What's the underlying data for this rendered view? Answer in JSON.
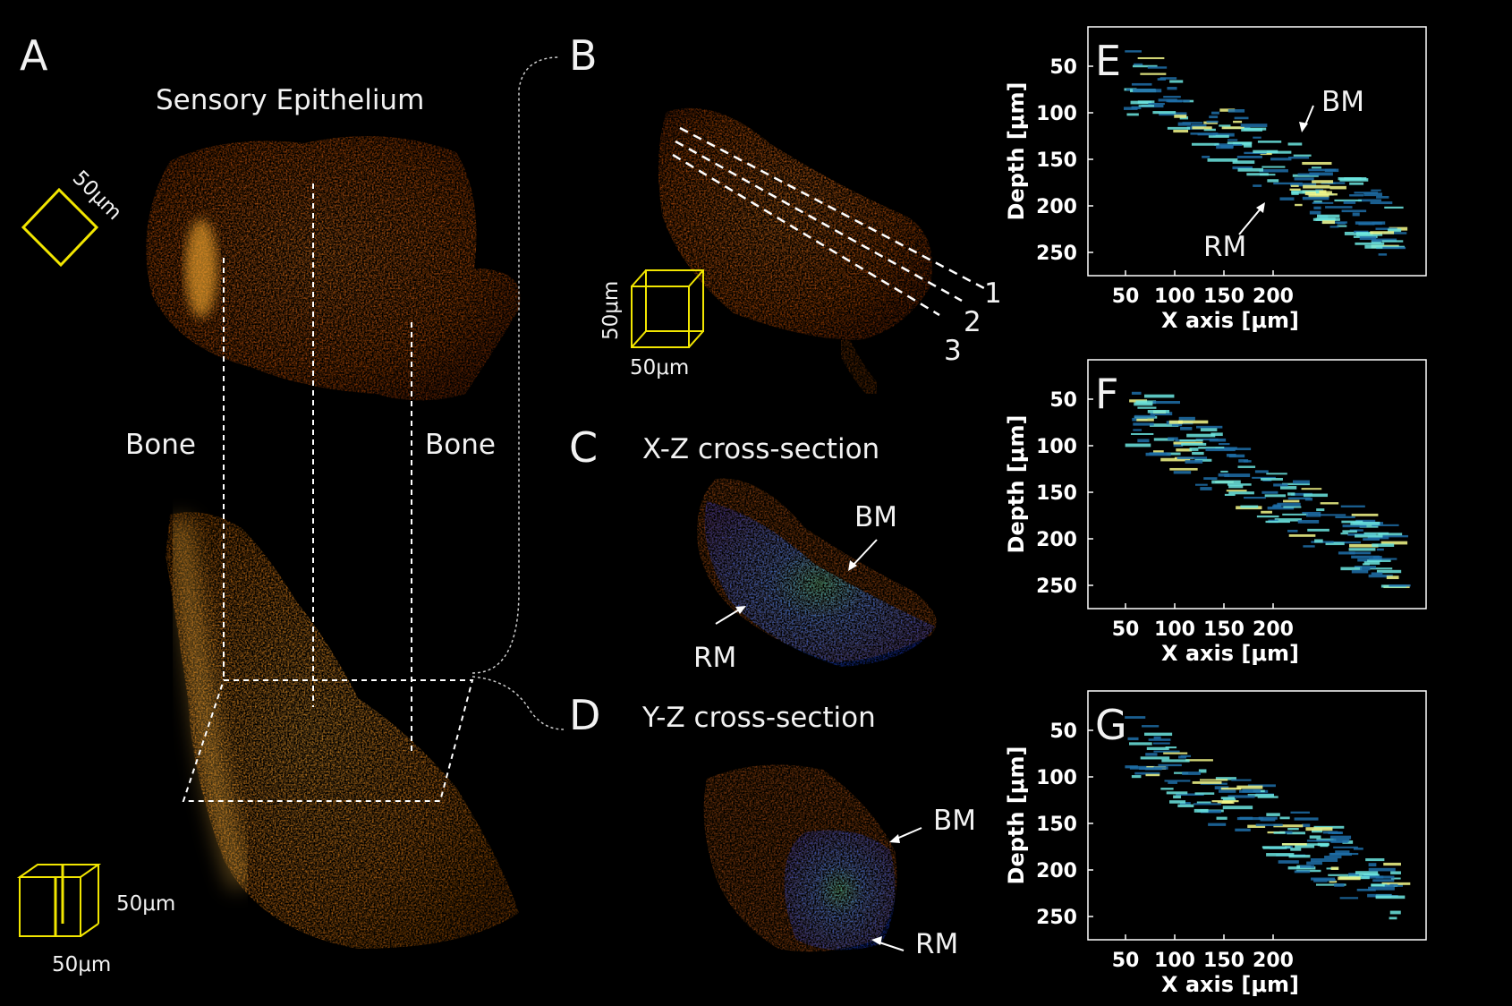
{
  "panels": {
    "A": {
      "letter": "A",
      "title": "Sensory Epithelium",
      "bone_left": "Bone",
      "bone_right": "Bone",
      "scale_square": "50μm",
      "scale_box_right": "50μm",
      "scale_box_bottom": "50μm"
    },
    "B": {
      "letter": "B",
      "scale_vertical": "50μm",
      "scale_bottom": "50μm",
      "slice_numbers": [
        "1",
        "2",
        "3"
      ]
    },
    "C": {
      "letter": "C",
      "title": "X-Z cross-section",
      "bm": "BM",
      "rm": "RM"
    },
    "D": {
      "letter": "D",
      "title": "Y-Z cross-section",
      "bm": "BM",
      "rm": "RM"
    },
    "E": {
      "letter": "E",
      "bm": "BM",
      "rm": "RM"
    },
    "F": {
      "letter": "F"
    },
    "G": {
      "letter": "G"
    }
  },
  "plots": {
    "ylabel": "Depth [μm]",
    "xlabel": "X axis [μm]",
    "yticks": [
      "50",
      "100",
      "150",
      "200",
      "250"
    ],
    "xticks": [
      "50",
      "100",
      "150",
      "200"
    ]
  },
  "colors": {
    "background": "#000000",
    "volume_orange": "#d96a10",
    "scale_yellow": "#f2e600",
    "oct_blue": "#2a5cf0",
    "oct_cyan": "#5ff0d0"
  }
}
